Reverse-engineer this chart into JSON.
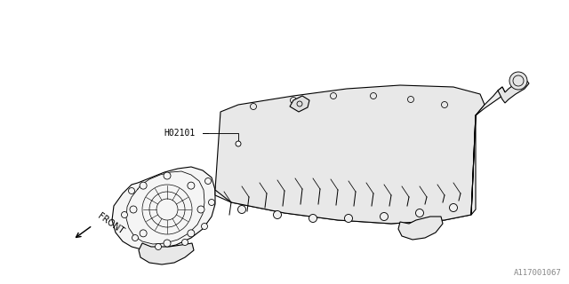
{
  "background_color": "#ffffff",
  "line_color": "#000000",
  "line_width": 0.8,
  "label_H02101": "H02101",
  "label_FRONT": "FRONT",
  "label_part_number": "A117001067",
  "figsize": [
    6.4,
    3.2
  ],
  "dpi": 100
}
